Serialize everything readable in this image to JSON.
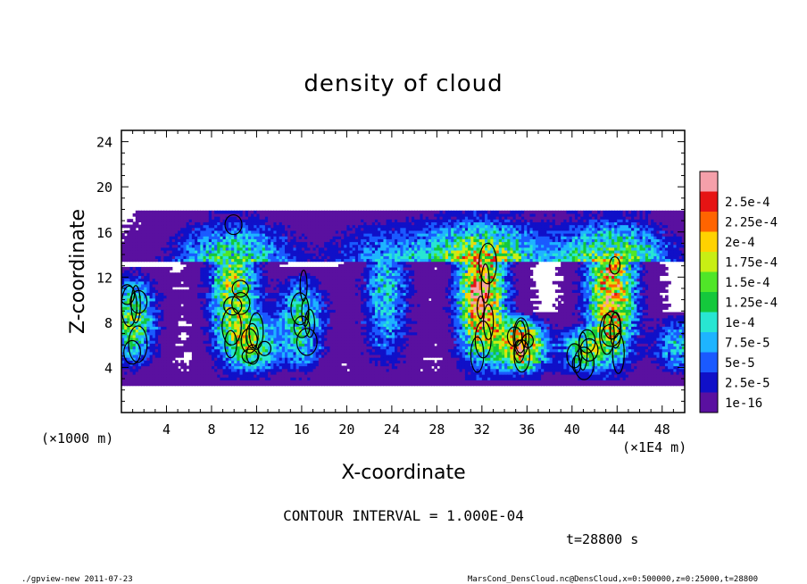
{
  "chart_data": {
    "type": "heatmap",
    "title": "density of cloud",
    "xlabel": "X-coordinate",
    "ylabel": "Z-coordinate",
    "x_unit_label": "(×1E4 m)",
    "y_unit_label": "(×1000 m)",
    "xlim": [
      0,
      50
    ],
    "ylim": [
      0,
      25
    ],
    "x_ticks": [
      4,
      8,
      12,
      16,
      20,
      24,
      28,
      32,
      36,
      40,
      44,
      48
    ],
    "y_ticks": [
      4,
      8,
      12,
      16,
      20,
      24
    ],
    "contour_interval_text": "CONTOUR INTERVAL = 1.000E-04",
    "time_text": "t=28800 s",
    "colorbar": {
      "levels": [
        "1e-16",
        "2.5e-5",
        "5e-5",
        "7.5e-5",
        "1e-4",
        "1.25e-4",
        "1.5e-4",
        "1.75e-4",
        "2e-4",
        "2.25e-4",
        "2.5e-4"
      ],
      "colors": [
        "#5a10a0",
        "#1010c8",
        "#1a5aff",
        "#1eb4ff",
        "#28e6d2",
        "#14c83c",
        "#50e628",
        "#c8ee14",
        "#ffd200",
        "#ff6400",
        "#e61414",
        "#f5a0aa"
      ]
    },
    "cloud_cells": [
      {
        "x": 1.0,
        "zmin": 3.5,
        "zmax": 13,
        "peak": 0.00015
      },
      {
        "x": 10.0,
        "zmin": 3.0,
        "zmax": 18,
        "peak": 0.000175
      },
      {
        "x": 12.0,
        "zmin": 3.0,
        "zmax": 9,
        "peak": 0.000125
      },
      {
        "x": 16.0,
        "zmin": 3.0,
        "zmax": 13,
        "peak": 0.000125
      },
      {
        "x": 23.5,
        "zmin": 3.0,
        "zmax": 18,
        "peak": 0.0001
      },
      {
        "x": 32.0,
        "zmin": 3.0,
        "zmax": 18,
        "peak": 0.00025
      },
      {
        "x": 35.5,
        "zmin": 3.0,
        "zmax": 9,
        "peak": 0.000225
      },
      {
        "x": 41.0,
        "zmin": 3.0,
        "zmax": 8,
        "peak": 0.000125
      },
      {
        "x": 43.5,
        "zmin": 3.0,
        "zmax": 18,
        "peak": 0.000225
      },
      {
        "x": 49.5,
        "zmin": 3.0,
        "zmax": 9,
        "peak": 0.0001
      }
    ]
  },
  "footer": {
    "left": "./gpview-new  2011-07-23",
    "right": "MarsCond_DensCloud.nc@DensCloud,x=0:500000,z=0:25000,t=28800"
  }
}
